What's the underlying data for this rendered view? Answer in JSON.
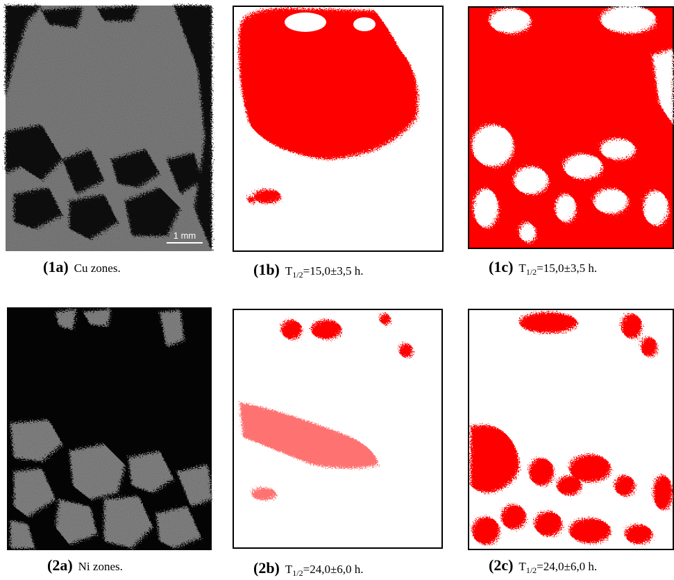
{
  "scale_bar": "1 mm",
  "panels": [
    {
      "label": "(1a)",
      "caption": "Cu zones."
    },
    {
      "label": "(1b)",
      "caption_symbol": "T",
      "caption_sub": "1/2",
      "caption": "=15,0±3,5 h."
    },
    {
      "label": "(1c)",
      "caption_symbol": "T",
      "caption_sub": "1/2",
      "caption": "=15,0±3,5 h."
    },
    {
      "label": "(2a)",
      "caption": "Ni zones."
    },
    {
      "label": "(2b)",
      "caption_symbol": "T",
      "caption_sub": "1/2",
      "caption": "=24,0±6,0 h."
    },
    {
      "label": "(2c)",
      "caption_symbol": "T",
      "caption_sub": "1/2",
      "caption": "=24,0±6,0 h."
    }
  ]
}
